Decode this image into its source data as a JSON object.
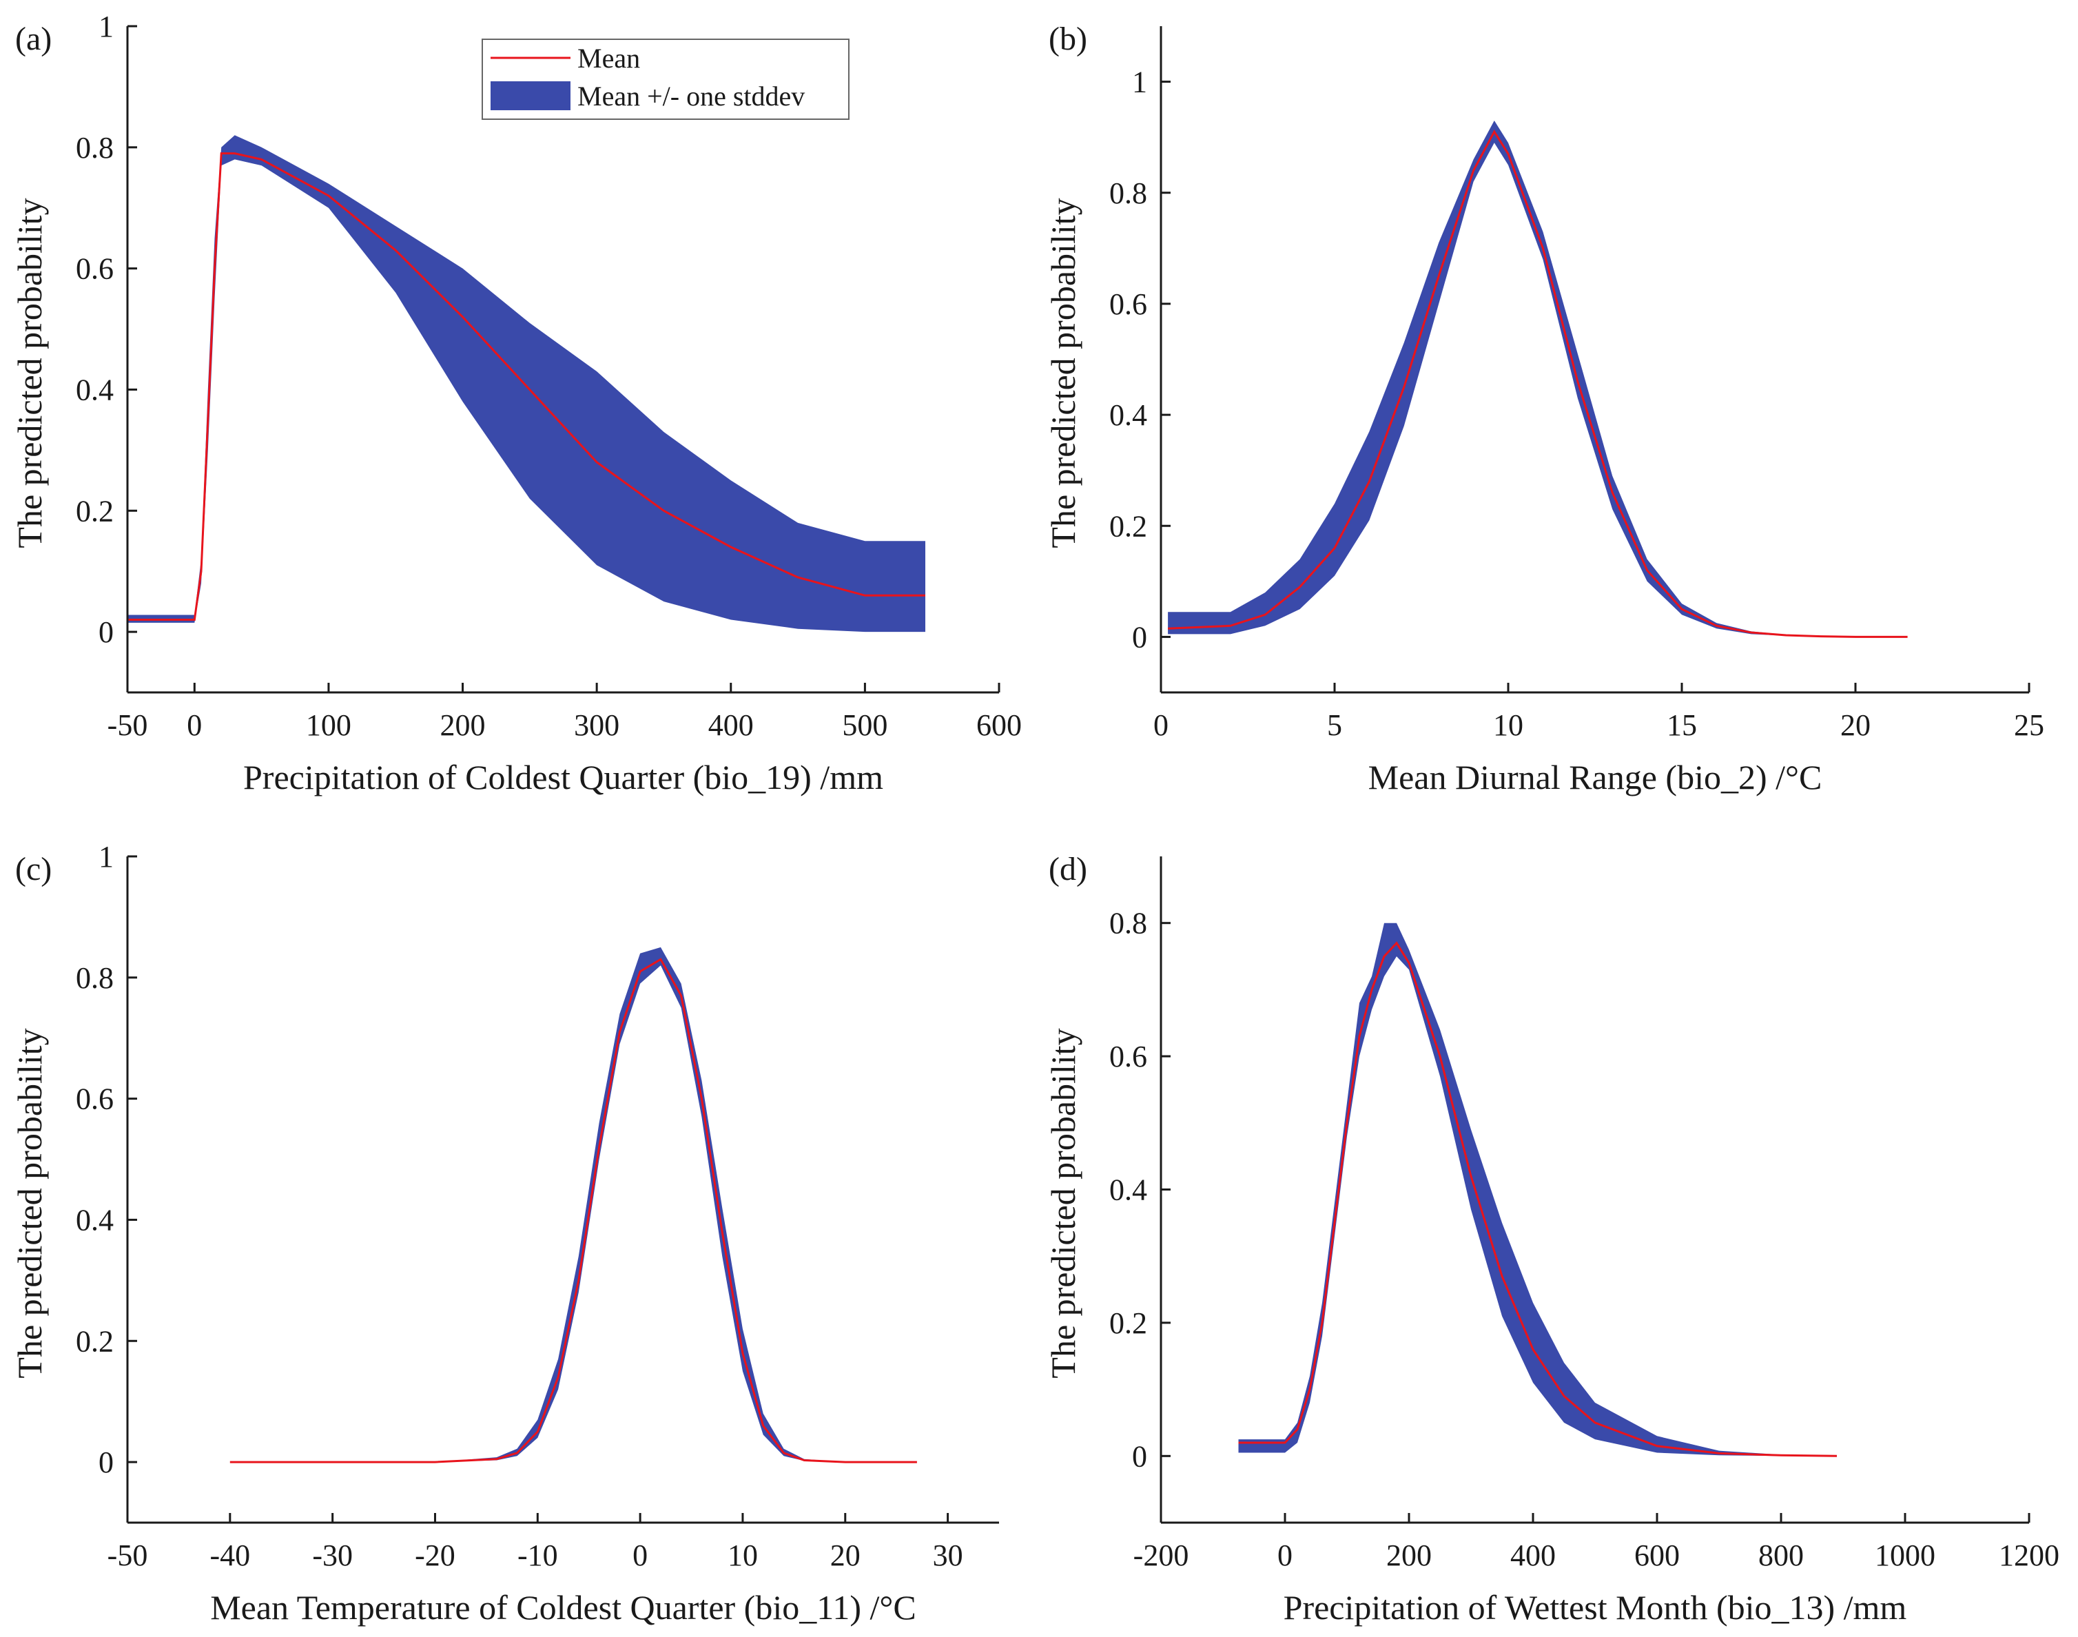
{
  "chart_data": [
    {
      "panel": "(a)",
      "type": "area",
      "xlabel": "Precipitation of Coldest Quarter (bio_19) /mm",
      "ylabel": "The predicted probability",
      "xlim": [
        -50,
        600
      ],
      "ylim": [
        -0.1,
        1.0
      ],
      "xticks": [
        -50,
        0,
        100,
        200,
        300,
        400,
        500,
        600
      ],
      "yticks": [
        0,
        0.2,
        0.4,
        0.6,
        0.8,
        1
      ],
      "yticklabels": [
        "0",
        "0.2",
        "0.4",
        "0.6",
        "0.8",
        "1"
      ],
      "legend": {
        "position": "top-center",
        "entries": [
          "Mean",
          "Mean +/- one stddev"
        ]
      },
      "series": [
        {
          "name": "Mean",
          "x": [
            -50,
            0,
            5,
            10,
            15,
            20,
            30,
            50,
            100,
            150,
            200,
            250,
            300,
            350,
            400,
            450,
            500,
            545
          ],
          "y": [
            0.02,
            0.02,
            0.1,
            0.35,
            0.6,
            0.79,
            0.79,
            0.78,
            0.72,
            0.63,
            0.52,
            0.4,
            0.28,
            0.2,
            0.14,
            0.09,
            0.06,
            0.06
          ]
        },
        {
          "name": "Mean +/- one stddev",
          "x": [
            -50,
            0,
            5,
            10,
            15,
            20,
            30,
            50,
            100,
            150,
            200,
            250,
            300,
            350,
            400,
            450,
            500,
            545
          ],
          "lower": [
            0.015,
            0.015,
            0.08,
            0.3,
            0.55,
            0.77,
            0.78,
            0.77,
            0.7,
            0.56,
            0.38,
            0.22,
            0.11,
            0.05,
            0.02,
            0.005,
            0.0,
            0.0
          ],
          "upper": [
            0.028,
            0.028,
            0.12,
            0.4,
            0.65,
            0.8,
            0.82,
            0.8,
            0.74,
            0.67,
            0.6,
            0.51,
            0.43,
            0.33,
            0.25,
            0.18,
            0.15,
            0.15
          ]
        }
      ]
    },
    {
      "panel": "(b)",
      "type": "area",
      "xlabel": "Mean Diurnal Range (bio_2) /°C",
      "ylabel": "The predicted probability",
      "xlim": [
        0,
        25
      ],
      "ylim": [
        -0.1,
        1.1
      ],
      "xticks": [
        0,
        5,
        10,
        15,
        20,
        25
      ],
      "yticks": [
        0,
        0.2,
        0.4,
        0.6,
        0.8,
        1
      ],
      "yticklabels": [
        "0",
        "0.2",
        "0.4",
        "0.6",
        "0.8",
        "1"
      ],
      "series": [
        {
          "name": "Mean",
          "x": [
            0.2,
            2,
            3,
            4,
            5,
            6,
            7,
            8,
            9,
            9.6,
            10,
            11,
            12,
            13,
            14,
            15,
            16,
            17,
            18,
            19,
            20,
            21.5
          ],
          "y": [
            0.015,
            0.02,
            0.04,
            0.09,
            0.16,
            0.28,
            0.45,
            0.65,
            0.84,
            0.91,
            0.87,
            0.7,
            0.46,
            0.26,
            0.12,
            0.05,
            0.02,
            0.008,
            0.003,
            0.001,
            0.0,
            0.0
          ]
        },
        {
          "name": "Mean +/- one stddev",
          "x": [
            0.2,
            2,
            3,
            4,
            5,
            6,
            7,
            8,
            9,
            9.6,
            10,
            11,
            12,
            13,
            14,
            15,
            16,
            17,
            18,
            19,
            20,
            21.5
          ],
          "lower": [
            0.005,
            0.005,
            0.02,
            0.05,
            0.11,
            0.21,
            0.38,
            0.6,
            0.82,
            0.89,
            0.85,
            0.68,
            0.43,
            0.23,
            0.1,
            0.04,
            0.015,
            0.005,
            0.002,
            0.0,
            0.0,
            0.0
          ],
          "upper": [
            0.045,
            0.045,
            0.08,
            0.14,
            0.24,
            0.37,
            0.53,
            0.71,
            0.86,
            0.93,
            0.89,
            0.73,
            0.51,
            0.29,
            0.14,
            0.06,
            0.025,
            0.01,
            0.004,
            0.002,
            0.0,
            0.0
          ]
        }
      ]
    },
    {
      "panel": "(c)",
      "type": "area",
      "xlabel": "Mean Temperature of Coldest Quarter (bio_11) /°C",
      "ylabel": "The predicted probability",
      "xlim": [
        -50,
        35
      ],
      "ylim": [
        -0.1,
        1.0
      ],
      "xticks": [
        -50,
        -40,
        -30,
        -20,
        -10,
        0,
        10,
        20,
        30
      ],
      "yticks": [
        0,
        0.2,
        0.4,
        0.6,
        0.8,
        1
      ],
      "yticklabels": [
        "0",
        "0.2",
        "0.4",
        "0.6",
        "0.8",
        "1"
      ],
      "series": [
        {
          "name": "Mean",
          "x": [
            -40,
            -20,
            -14,
            -12,
            -10,
            -8,
            -6,
            -4,
            -2,
            0,
            2,
            4,
            6,
            8,
            10,
            12,
            14,
            16,
            20,
            27
          ],
          "y": [
            0.0,
            0.0,
            0.005,
            0.015,
            0.05,
            0.14,
            0.3,
            0.52,
            0.71,
            0.81,
            0.83,
            0.77,
            0.6,
            0.38,
            0.18,
            0.06,
            0.015,
            0.003,
            0.0,
            0.0
          ]
        },
        {
          "name": "Mean +/- one stddev",
          "x": [
            -40,
            -20,
            -14,
            -12,
            -10,
            -8,
            -6,
            -4,
            -2,
            0,
            2,
            4,
            6,
            8,
            10,
            12,
            14,
            16,
            20,
            27
          ],
          "lower": [
            0.0,
            0.0,
            0.003,
            0.01,
            0.04,
            0.12,
            0.28,
            0.5,
            0.69,
            0.79,
            0.82,
            0.75,
            0.57,
            0.34,
            0.15,
            0.045,
            0.01,
            0.002,
            0.0,
            0.0
          ],
          "upper": [
            0.0,
            0.0,
            0.008,
            0.022,
            0.07,
            0.17,
            0.34,
            0.56,
            0.74,
            0.84,
            0.85,
            0.79,
            0.63,
            0.42,
            0.22,
            0.08,
            0.022,
            0.005,
            0.0,
            0.0
          ]
        }
      ]
    },
    {
      "panel": "(d)",
      "type": "area",
      "xlabel": "Precipitation of Wettest Month (bio_13) /mm",
      "ylabel": "The predicted probability",
      "xlim": [
        -200,
        1200
      ],
      "ylim": [
        -0.1,
        0.9
      ],
      "xticks": [
        -200,
        0,
        200,
        400,
        600,
        800,
        1000,
        1200
      ],
      "yticks": [
        0,
        0.2,
        0.4,
        0.6,
        0.8
      ],
      "yticklabels": [
        "0",
        "0.2",
        "0.4",
        "0.6",
        "0.8"
      ],
      "series": [
        {
          "name": "Mean",
          "x": [
            -75,
            0,
            20,
            40,
            60,
            80,
            100,
            120,
            140,
            160,
            180,
            200,
            250,
            300,
            350,
            400,
            450,
            500,
            600,
            700,
            800,
            890
          ],
          "y": [
            0.02,
            0.02,
            0.04,
            0.1,
            0.2,
            0.35,
            0.5,
            0.63,
            0.7,
            0.75,
            0.77,
            0.74,
            0.6,
            0.42,
            0.27,
            0.16,
            0.09,
            0.05,
            0.015,
            0.004,
            0.001,
            0.0
          ]
        },
        {
          "name": "Mean +/- one stddev",
          "x": [
            -75,
            0,
            20,
            40,
            60,
            80,
            100,
            120,
            140,
            160,
            180,
            200,
            250,
            300,
            350,
            400,
            450,
            500,
            600,
            700,
            800,
            890
          ],
          "lower": [
            0.005,
            0.005,
            0.02,
            0.08,
            0.18,
            0.33,
            0.48,
            0.6,
            0.67,
            0.72,
            0.75,
            0.73,
            0.57,
            0.37,
            0.21,
            0.11,
            0.05,
            0.025,
            0.005,
            0.001,
            0.0,
            0.0
          ],
          "upper": [
            0.025,
            0.025,
            0.05,
            0.12,
            0.23,
            0.38,
            0.53,
            0.68,
            0.72,
            0.8,
            0.8,
            0.76,
            0.64,
            0.49,
            0.35,
            0.23,
            0.14,
            0.08,
            0.03,
            0.008,
            0.002,
            0.0
          ]
        }
      ]
    }
  ]
}
